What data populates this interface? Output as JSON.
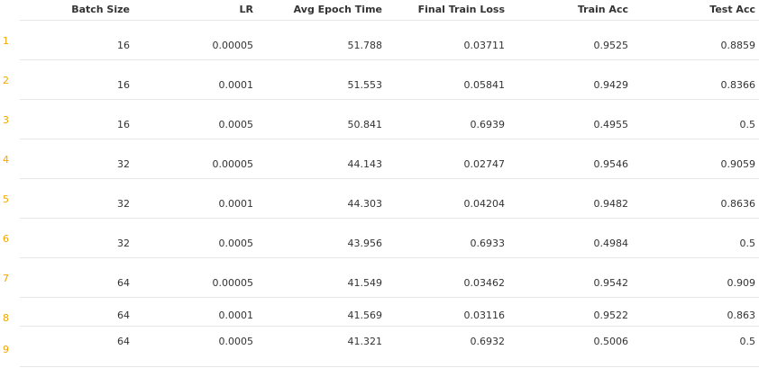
{
  "table": {
    "columns": [
      "Batch Size",
      "LR",
      "Avg Epoch Time",
      "Final Train Loss",
      "Train Acc",
      "Test Acc"
    ],
    "rows": [
      {
        "index": "1",
        "cells": [
          "16",
          "0.00005",
          "51.788",
          "0.03711",
          "0.9525",
          "0.8859"
        ]
      },
      {
        "index": "2",
        "cells": [
          "16",
          "0.0001",
          "51.553",
          "0.05841",
          "0.9429",
          "0.8366"
        ]
      },
      {
        "index": "3",
        "cells": [
          "16",
          "0.0005",
          "50.841",
          "0.6939",
          "0.4955",
          "0.5"
        ]
      },
      {
        "index": "4",
        "cells": [
          "32",
          "0.00005",
          "44.143",
          "0.02747",
          "0.9546",
          "0.9059"
        ]
      },
      {
        "index": "5",
        "cells": [
          "32",
          "0.0001",
          "44.303",
          "0.04204",
          "0.9482",
          "0.8636"
        ]
      },
      {
        "index": "6",
        "cells": [
          "32",
          "0.0005",
          "43.956",
          "0.6933",
          "0.4984",
          "0.5"
        ]
      },
      {
        "index": "7",
        "cells": [
          "64",
          "0.00005",
          "41.549",
          "0.03462",
          "0.9542",
          "0.909"
        ]
      },
      {
        "index": "8",
        "cells": [
          "64",
          "0.0001",
          "41.569",
          "0.03116",
          "0.9522",
          "0.863"
        ]
      },
      {
        "index": "9",
        "cells": [
          "64",
          "0.0005",
          "41.321",
          "0.6932",
          "0.5006",
          "0.5"
        ]
      }
    ]
  },
  "colors": {
    "index_color": "#f2a500",
    "text_color": "#333333",
    "divider_color": "#e6e6e6"
  }
}
